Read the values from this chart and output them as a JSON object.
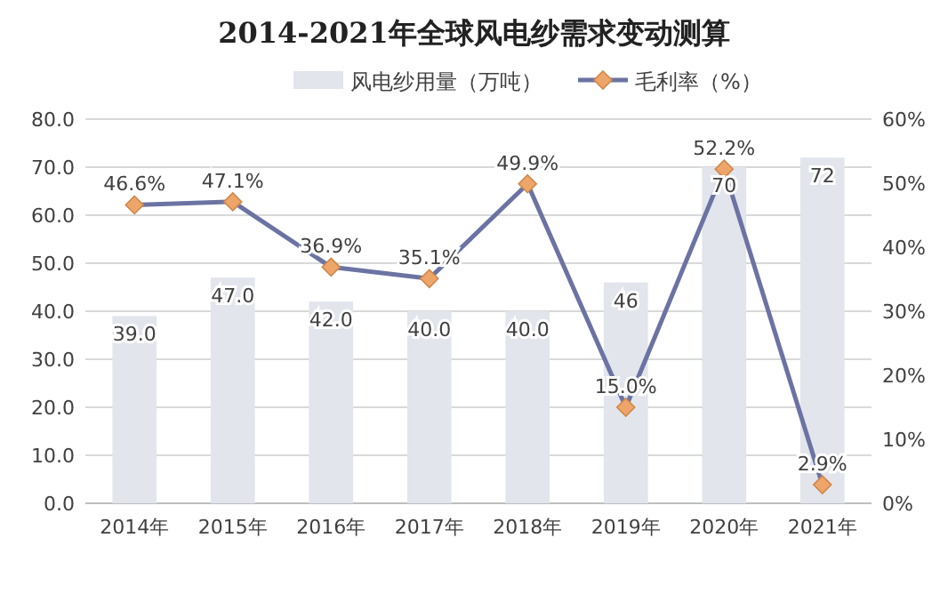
{
  "chart_data": {
    "type": "bar",
    "title": "2014-2021年全球风电纱需求变动测算",
    "categories": [
      "2014年",
      "2015年",
      "2016年",
      "2017年",
      "2018年",
      "2019年",
      "2020年",
      "2021年"
    ],
    "series": [
      {
        "name": "风电纱用量（万吨）",
        "type": "bar",
        "color": "#e2e5ec",
        "values": [
          39,
          47,
          42,
          40,
          40,
          46,
          70,
          72
        ],
        "value_labels": [
          "39.0",
          "47.0",
          "42.0",
          "40.0",
          "40.0",
          "46",
          "70",
          "72"
        ]
      },
      {
        "name": "毛利率（%）",
        "type": "line",
        "axis": "y2",
        "color": "#6b73a3",
        "marker": "diamond",
        "values": [
          46.6,
          47.1,
          36.9,
          35.1,
          49.9,
          15.0,
          52.2,
          2.9
        ],
        "value_labels": [
          "46.6%",
          "47.1%",
          "36.9%",
          "35.1%",
          "49.9%",
          "15.0%",
          "52.2%",
          "2.9%"
        ]
      }
    ],
    "ylim": [
      0,
      80
    ],
    "yticks": [
      {
        "value": 0,
        "label": "0.0"
      },
      {
        "value": 10,
        "label": "10.0"
      },
      {
        "value": 20,
        "label": "20.0"
      },
      {
        "value": 30,
        "label": "30.0"
      },
      {
        "value": 40,
        "label": "40.0"
      },
      {
        "value": 50,
        "label": "50.0"
      },
      {
        "value": 60,
        "label": "60.0"
      },
      {
        "value": 70,
        "label": "70.0"
      },
      {
        "value": 80,
        "label": "80.0"
      }
    ],
    "y2lim": [
      0,
      60
    ],
    "y2ticks": [
      {
        "value": 0,
        "label": "0%"
      },
      {
        "value": 10,
        "label": "10%"
      },
      {
        "value": 20,
        "label": "20%"
      },
      {
        "value": 30,
        "label": "30%"
      },
      {
        "value": 40,
        "label": "40%"
      },
      {
        "value": 50,
        "label": "50%"
      },
      {
        "value": 60,
        "label": "60%"
      }
    ],
    "grid": "y",
    "legend": "top"
  }
}
